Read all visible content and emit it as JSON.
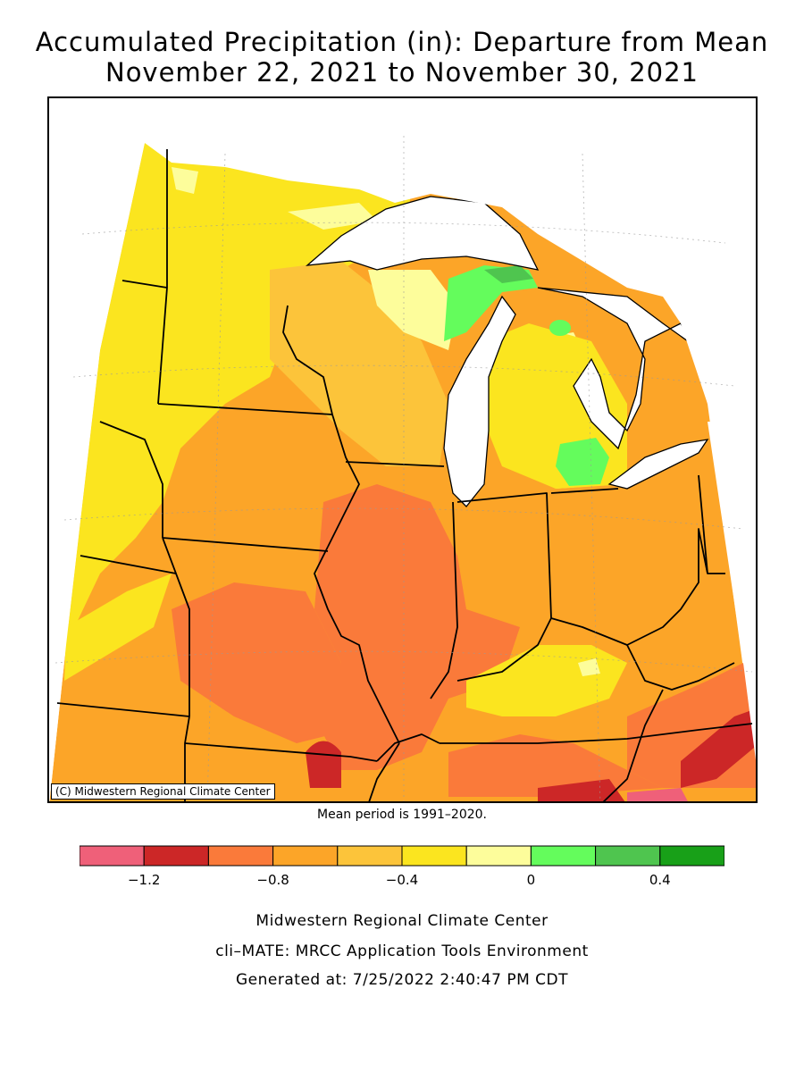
{
  "title_line1": "Accumulated Precipitation (in): Departure from Mean",
  "title_line2": "November 22, 2021 to November 30, 2021",
  "copyright": "(C) Midwestern Regional Climate Center",
  "mean_period": "Mean period is 1991–2020.",
  "legend": {
    "colors": [
      "#ef6079",
      "#cc2727",
      "#fa7a3a",
      "#fca528",
      "#fcc43a",
      "#fbe51f",
      "#fdfd9b",
      "#64fc5c",
      "#4fc54f",
      "#18a018"
    ],
    "tick_labels": [
      {
        "label": "−1.2",
        "index": 1
      },
      {
        "label": "−0.8",
        "index": 3
      },
      {
        "label": "−0.4",
        "index": 5
      },
      {
        "label": "0",
        "index": 7
      },
      {
        "label": "0.4",
        "index": 9
      }
    ]
  },
  "footer": {
    "line1": "Midwestern Regional Climate Center",
    "line2": "cli–MATE: MRCC Application Tools Environment",
    "line3": "Generated at: 7/25/2022 2:40:47 PM CDT"
  }
}
